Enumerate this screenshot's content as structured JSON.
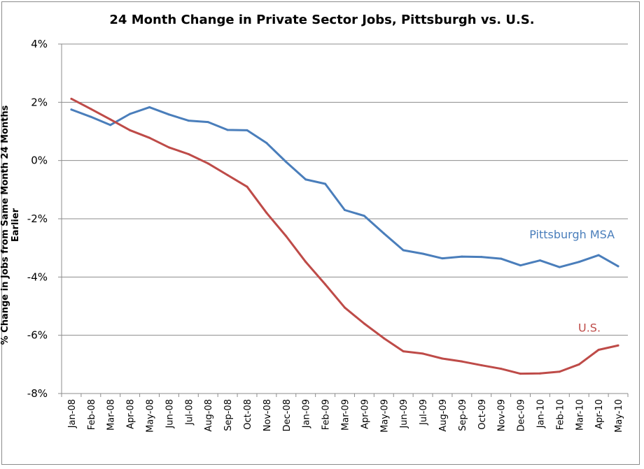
{
  "chart_data": {
    "type": "line",
    "title": "24 Month Change in Private Sector Jobs, Pittsburgh vs. U.S.",
    "xlabel": "",
    "ylabel": "% Change in Jobs from Same Month 24 Months Earlier",
    "ylim": [
      -8,
      4
    ],
    "yticks": [
      4,
      2,
      0,
      -2,
      -4,
      -6,
      -8
    ],
    "ytick_labels": [
      "4%",
      "2%",
      "0%",
      "-2%",
      "-4%",
      "-6%",
      "-8%"
    ],
    "grid": "horizontal",
    "legend": "inline labels near series ends",
    "x": [
      "Jan-08",
      "Feb-08",
      "Mar-08",
      "Apr-08",
      "May-08",
      "Jun-08",
      "Jul-08",
      "Aug-08",
      "Sep-08",
      "Oct-08",
      "Nov-08",
      "Dec-08",
      "Jan-09",
      "Feb-09",
      "Mar-09",
      "Apr-09",
      "May-09",
      "Jun-09",
      "Jul-09",
      "Aug-09",
      "Sep-09",
      "Oct-09",
      "Nov-09",
      "Dec-09",
      "Jan-10",
      "Feb-10",
      "Mar-10",
      "Apr-10",
      "May-10"
    ],
    "series": [
      {
        "name": "Pittsburgh MSA",
        "color": "#4a7ebb",
        "values": [
          1.75,
          1.5,
          1.22,
          1.6,
          1.83,
          1.58,
          1.37,
          1.32,
          1.05,
          1.04,
          0.6,
          -0.05,
          -0.65,
          -0.8,
          -1.7,
          -1.9,
          -2.5,
          -3.08,
          -3.2,
          -3.36,
          -3.3,
          -3.31,
          -3.37,
          -3.6,
          -3.43,
          -3.66,
          -3.48,
          -3.25,
          -3.63
        ]
      },
      {
        "name": "U.S.",
        "color": "#be4b48",
        "values": [
          2.12,
          1.77,
          1.41,
          1.04,
          0.78,
          0.45,
          0.22,
          -0.1,
          -0.5,
          -0.9,
          -1.8,
          -2.6,
          -3.48,
          -4.25,
          -5.05,
          -5.6,
          -6.1,
          -6.55,
          -6.63,
          -6.8,
          -6.9,
          -7.03,
          -7.15,
          -7.32,
          -7.31,
          -7.25,
          -7.0,
          -6.5,
          -6.35
        ]
      }
    ]
  }
}
